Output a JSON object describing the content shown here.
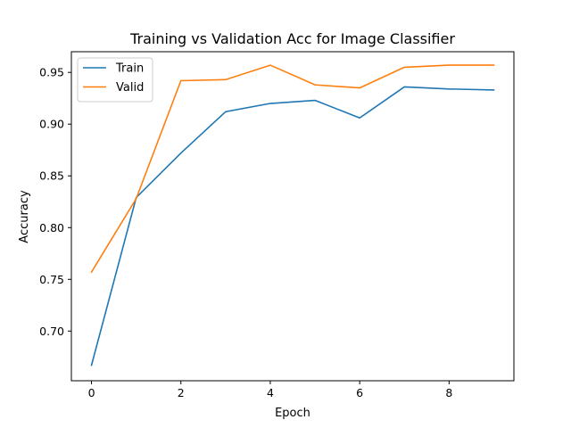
{
  "chart_data": {
    "type": "line",
    "title": "Training vs Validation Acc for Image Classifier",
    "xlabel": "Epoch",
    "ylabel": "Accuracy",
    "x": [
      0,
      1,
      2,
      3,
      4,
      5,
      6,
      7,
      8,
      9
    ],
    "xlim": [
      -0.45,
      9.45
    ],
    "ylim": [
      0.652,
      0.97
    ],
    "xticks": [
      0,
      2,
      4,
      6,
      8
    ],
    "xtick_labels": [
      "0",
      "2",
      "4",
      "6",
      "8"
    ],
    "yticks": [
      0.7,
      0.75,
      0.8,
      0.85,
      0.9,
      0.95
    ],
    "ytick_labels": [
      "0.70",
      "0.75",
      "0.80",
      "0.85",
      "0.90",
      "0.95"
    ],
    "grid": false,
    "legend_position": "upper-left",
    "series": [
      {
        "name": "Train",
        "color": "#1f77b4",
        "values": [
          0.667,
          0.829,
          0.872,
          0.912,
          0.92,
          0.923,
          0.906,
          0.936,
          0.934,
          0.933
        ]
      },
      {
        "name": "Valid",
        "color": "#ff7f0e",
        "values": [
          0.757,
          0.828,
          0.942,
          0.943,
          0.957,
          0.938,
          0.935,
          0.955,
          0.957,
          0.957
        ]
      }
    ]
  }
}
